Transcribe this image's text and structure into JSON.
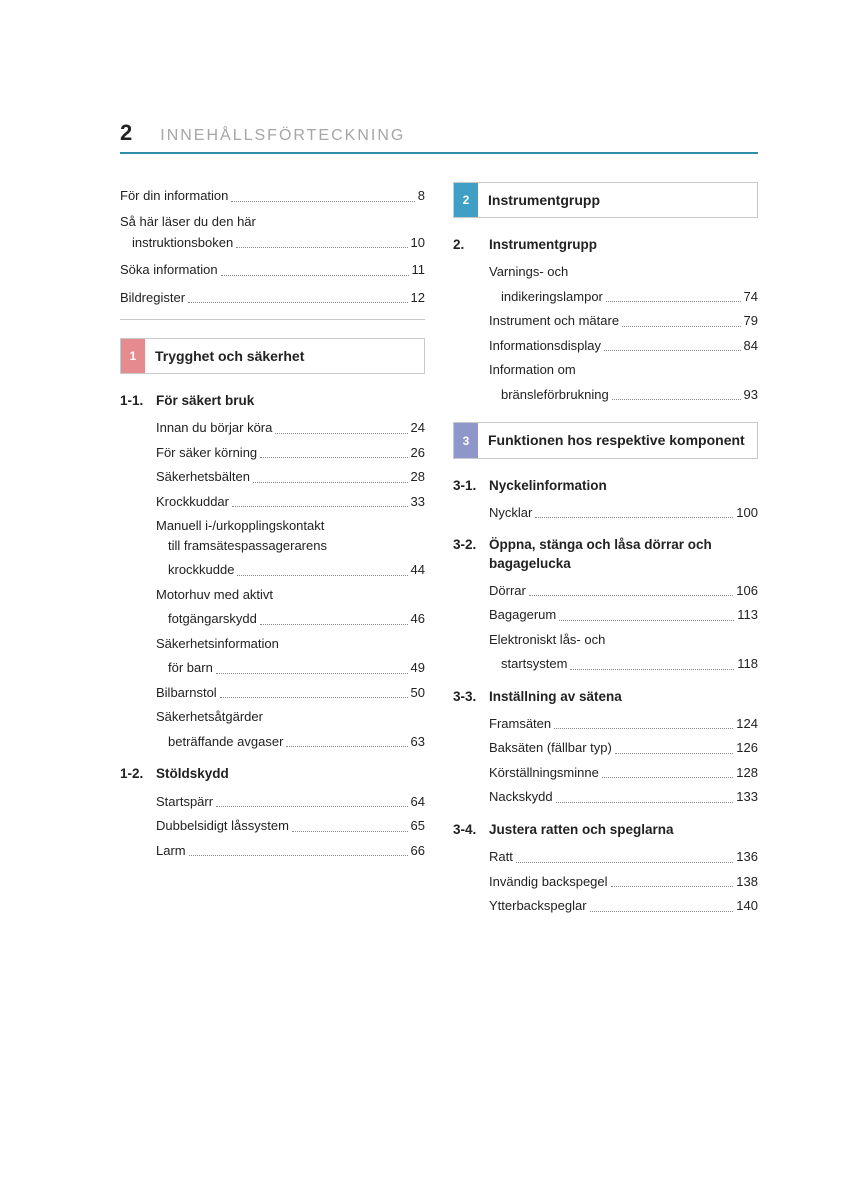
{
  "colors": {
    "header_rule": "#2f8fa8",
    "header_title": "#a6a6a6",
    "chapter1": "#e58a8f",
    "chapter2": "#3f9fc4",
    "chapter3": "#8f96c9",
    "box_border": "#c9c9c9",
    "text": "#222222",
    "dots": "#888888"
  },
  "typography": {
    "page_number_pt": 22,
    "header_title_pt": 16,
    "body_pt": 13,
    "chapter_title_pt": 14,
    "section_head_pt": 13.5
  },
  "header": {
    "page_number": "2",
    "title": "INNEHÅLLSFÖRTECKNING"
  },
  "intro": [
    {
      "label": "För din information",
      "page": "8"
    },
    {
      "label_line1": "Så här läser du den här",
      "label_line2": "instruktionsboken",
      "page": "10"
    },
    {
      "label": "Söka information",
      "page": "11"
    },
    {
      "label": "Bildregister",
      "page": "12"
    }
  ],
  "chapters": [
    {
      "num": "1",
      "color_key": "chapter1",
      "title": "Trygghet och säkerhet",
      "sections": [
        {
          "num": "1-1.",
          "title": "För säkert bruk",
          "items": [
            {
              "label": "Innan du börjar köra",
              "page": "24"
            },
            {
              "label": "För säker körning",
              "page": "26"
            },
            {
              "label": "Säkerhetsbälten",
              "page": "28"
            },
            {
              "label": "Krockkuddar",
              "page": "33"
            },
            {
              "label_lines": [
                "Manuell i-/urkopplingskontakt",
                "till framsätespassagerarens",
                "krockkudde"
              ],
              "page": "44"
            },
            {
              "label_lines": [
                "Motorhuv med aktivt",
                "fotgängarskydd"
              ],
              "page": "46"
            },
            {
              "label_lines": [
                "Säkerhetsinformation",
                "för barn"
              ],
              "page": "49"
            },
            {
              "label": "Bilbarnstol",
              "page": "50"
            },
            {
              "label_lines": [
                "Säkerhetsåtgärder",
                "beträffande avgaser"
              ],
              "page": "63"
            }
          ]
        },
        {
          "num": "1-2.",
          "title": "Stöldskydd",
          "items": [
            {
              "label": "Startspärr",
              "page": "64"
            },
            {
              "label": "Dubbelsidigt låssystem",
              "page": "65"
            },
            {
              "label": "Larm",
              "page": "66"
            }
          ]
        }
      ]
    },
    {
      "num": "2",
      "color_key": "chapter2",
      "title": "Instrumentgrupp",
      "sections": [
        {
          "num": "2.",
          "title": "Instrumentgrupp",
          "items": [
            {
              "label_lines": [
                "Varnings- och",
                "indikeringslampor"
              ],
              "page": "74"
            },
            {
              "label": "Instrument och mätare",
              "page": "79"
            },
            {
              "label": "Informationsdisplay",
              "page": "84"
            },
            {
              "label_lines": [
                "Information om",
                "bränsleförbrukning"
              ],
              "page": "93"
            }
          ]
        }
      ]
    },
    {
      "num": "3",
      "color_key": "chapter3",
      "title": "Funktionen hos respektive komponent",
      "sections": [
        {
          "num": "3-1.",
          "title": "Nyckelinformation",
          "items": [
            {
              "label": "Nycklar",
              "page": "100"
            }
          ]
        },
        {
          "num": "3-2.",
          "title": "Öppna, stänga och låsa dörrar och bagagelucka",
          "items": [
            {
              "label": "Dörrar",
              "page": "106"
            },
            {
              "label": "Bagagerum",
              "page": "113"
            },
            {
              "label_lines": [
                "Elektroniskt lås- och",
                "startsystem"
              ],
              "page": "118"
            }
          ]
        },
        {
          "num": "3-3.",
          "title": "Inställning av sätena",
          "items": [
            {
              "label": "Framsäten",
              "page": "124"
            },
            {
              "label": "Baksäten (fällbar typ)",
              "page": "126"
            },
            {
              "label": "Körställningsminne",
              "page": "128"
            },
            {
              "label": "Nackskydd",
              "page": "133"
            }
          ]
        },
        {
          "num": "3-4.",
          "title": "Justera ratten och speglarna",
          "items": [
            {
              "label": "Ratt",
              "page": "136"
            },
            {
              "label": "Invändig backspegel",
              "page": "138"
            },
            {
              "label": "Ytterbackspeglar",
              "page": "140"
            }
          ]
        }
      ]
    }
  ]
}
